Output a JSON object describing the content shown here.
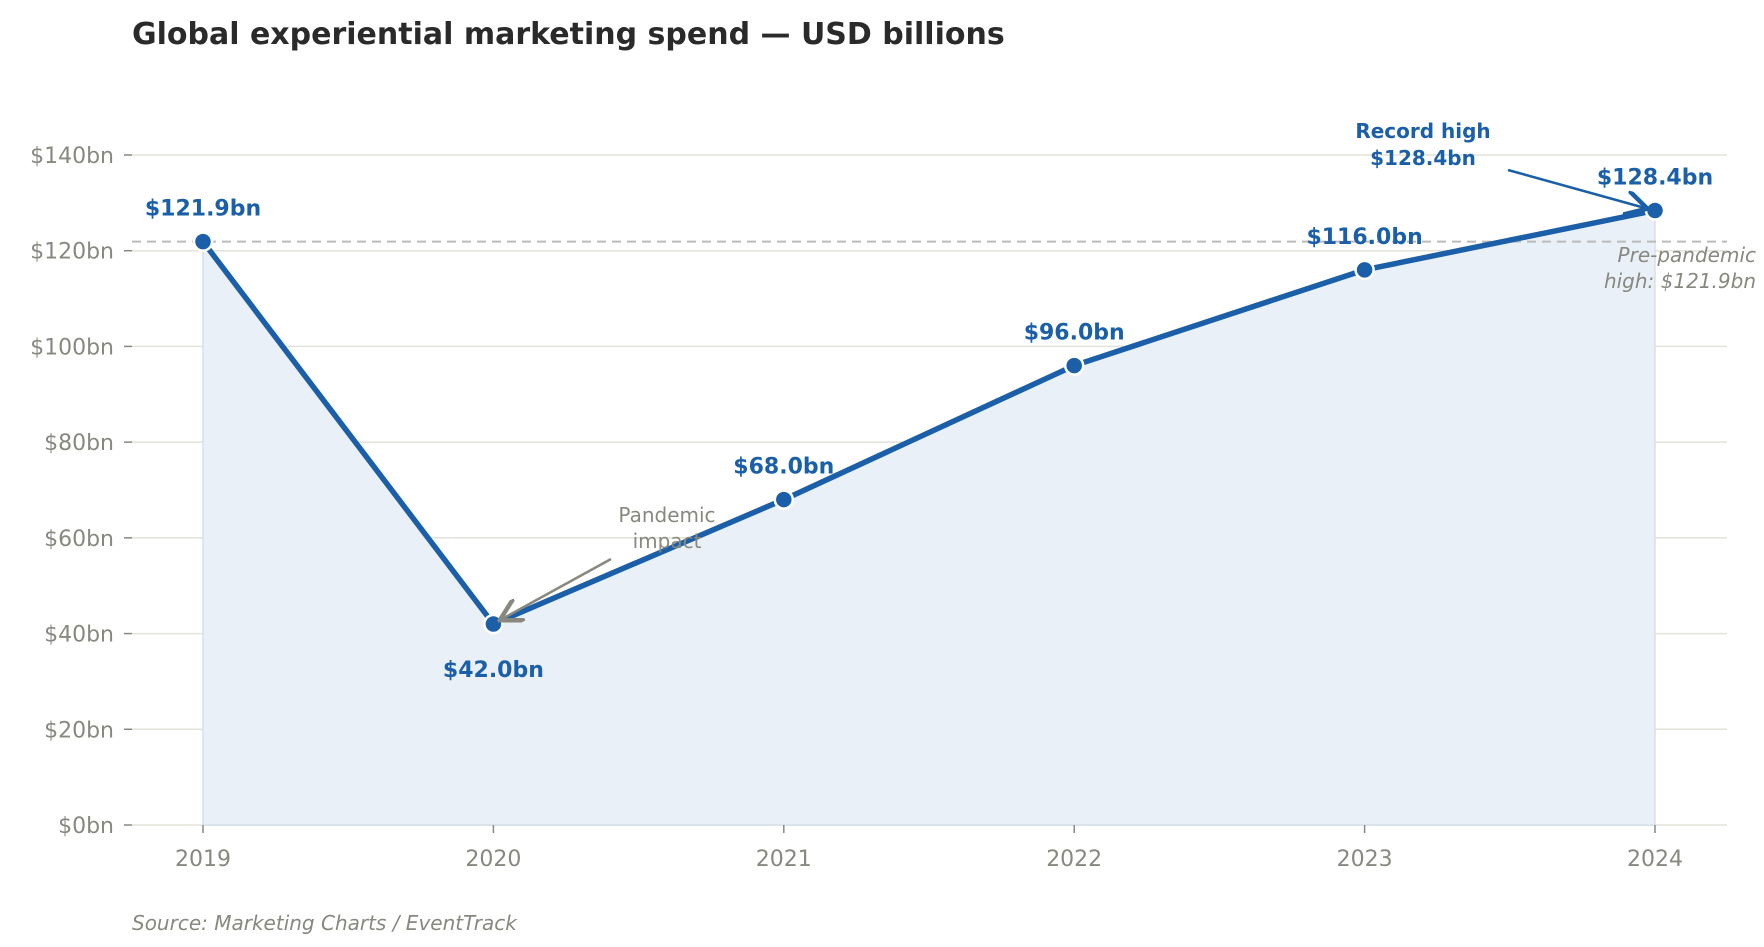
{
  "chart_data": {
    "type": "line",
    "title": "Global experiential marketing spend — USD billions",
    "source": "Source: Marketing Charts / EventTrack",
    "categories": [
      "2019",
      "2020",
      "2021",
      "2022",
      "2023",
      "2024"
    ],
    "series": [
      {
        "values": [
          121.9,
          42.0,
          68.0,
          96.0,
          116.0,
          128.4
        ],
        "data_labels": [
          "$121.9bn",
          "$42.0bn",
          "$68.0bn",
          "$96.0bn",
          "$116.0bn",
          "$128.4bn"
        ]
      }
    ],
    "ylim": [
      0,
      140
    ],
    "yticks": [
      0,
      20,
      40,
      60,
      80,
      100,
      120,
      140
    ],
    "ytick_labels": [
      "$0bn",
      "$20bn",
      "$40bn",
      "$60bn",
      "$80bn",
      "$100bn",
      "$120bn",
      "$140bn"
    ],
    "reference_line": {
      "value": 121.9,
      "label_line1": "Pre-pandemic",
      "label_line2": "high: $121.9bn"
    },
    "annotations": [
      {
        "target": "2020",
        "line1": "Pandemic",
        "line2": "impact"
      },
      {
        "target": "2024",
        "line1": "Record high",
        "line2": "$128.4bn"
      }
    ],
    "grid": "horizontal",
    "area_fill": true,
    "colors": {
      "line": "#1a5fa8",
      "fill": "#eaf0f8",
      "grid": "#e3e3da",
      "text": "#888880",
      "title": "#2a2a2a"
    }
  }
}
